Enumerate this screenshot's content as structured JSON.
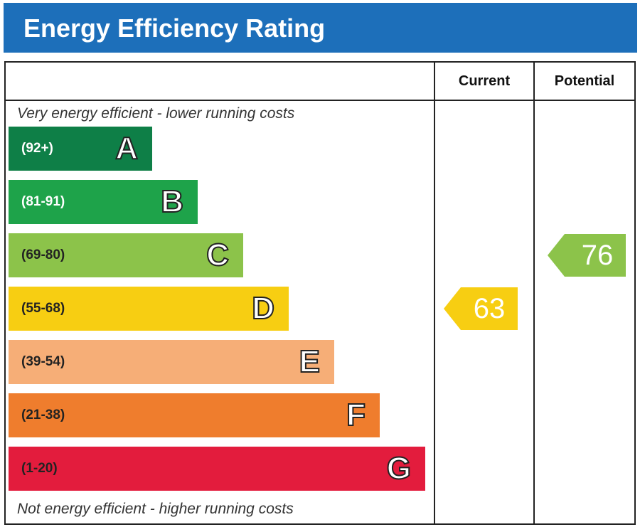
{
  "title": "Energy Efficiency Rating",
  "columns": {
    "current": "Current",
    "potential": "Potential"
  },
  "notes": {
    "top": "Very energy efficient - lower running costs",
    "bottom": "Not energy efficient - higher running costs"
  },
  "chart_data": {
    "type": "bar",
    "categories": [
      "A",
      "B",
      "C",
      "D",
      "E",
      "F",
      "G"
    ],
    "bands": [
      {
        "letter": "A",
        "range": "(92+)",
        "min": 92,
        "max": 100,
        "color": "#0e7f47",
        "text_color": "#ffffff"
      },
      {
        "letter": "B",
        "range": "(81-91)",
        "min": 81,
        "max": 91,
        "color": "#1ea34a",
        "text_color": "#ffffff"
      },
      {
        "letter": "C",
        "range": "(69-80)",
        "min": 69,
        "max": 80,
        "color": "#8cc34a",
        "text_color": "#222222"
      },
      {
        "letter": "D",
        "range": "(55-68)",
        "min": 55,
        "max": 68,
        "color": "#f7ce12",
        "text_color": "#222222"
      },
      {
        "letter": "E",
        "range": "(39-54)",
        "min": 39,
        "max": 54,
        "color": "#f6ae77",
        "text_color": "#222222"
      },
      {
        "letter": "F",
        "range": "(21-38)",
        "min": 21,
        "max": 38,
        "color": "#ef7d2d",
        "text_color": "#222222"
      },
      {
        "letter": "G",
        "range": "(1-20)",
        "min": 1,
        "max": 20,
        "color": "#e31c3d",
        "text_color": "#222222"
      }
    ],
    "current": {
      "value": 63,
      "label": "63",
      "band": "D",
      "color": "#f7ce12"
    },
    "potential": {
      "value": 76,
      "label": "76",
      "band": "C",
      "color": "#8cc34a"
    }
  }
}
